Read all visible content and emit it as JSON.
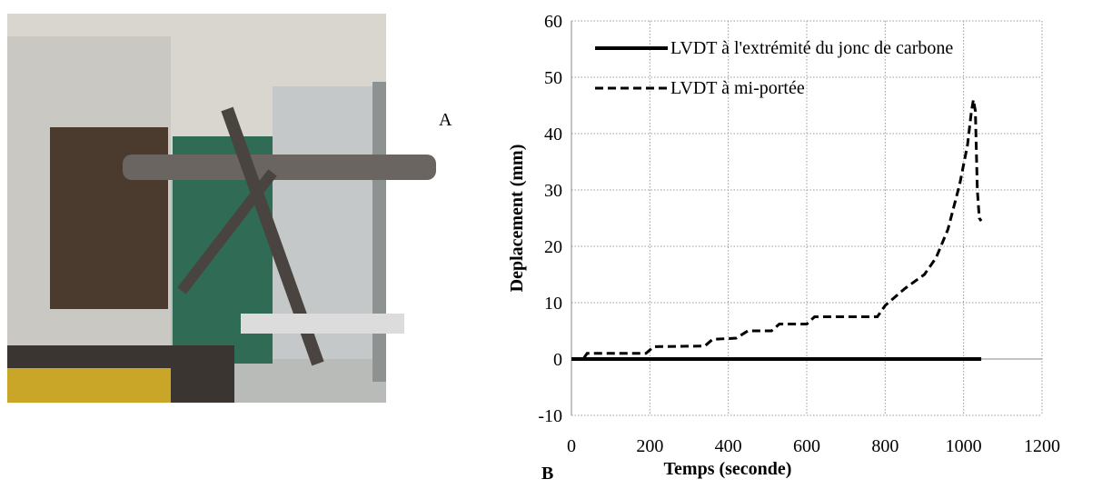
{
  "photo_label": "A",
  "chart_label": "B",
  "chart_data": {
    "type": "line",
    "xlabel": "Temps (seconde)",
    "ylabel": "Deplacement (mm)",
    "xlim": [
      0,
      1200
    ],
    "xticks": [
      0,
      200,
      400,
      600,
      800,
      1000,
      1200
    ],
    "ylim": [
      -10,
      60
    ],
    "yticks": [
      -10,
      0,
      10,
      20,
      30,
      40,
      50,
      60
    ],
    "grid": true,
    "legend": "top-left",
    "series": [
      {
        "name": "LVDT à l'extrémité du jonc de carbone",
        "color": "#000000",
        "line_style": "solid",
        "x": [
          0,
          1045
        ],
        "values": [
          0,
          0
        ]
      },
      {
        "name": "LVDT à mi-portée",
        "color": "#000000",
        "line_style": "dashed",
        "x": [
          0,
          30,
          40,
          190,
          210,
          340,
          360,
          420,
          450,
          510,
          530,
          600,
          620,
          780,
          800,
          850,
          880,
          900,
          930,
          960,
          990,
          1010,
          1020,
          1025,
          1030,
          1035,
          1040,
          1045
        ],
        "values": [
          0,
          0,
          1,
          1,
          2.2,
          2.3,
          3.5,
          3.7,
          5,
          5,
          6.2,
          6.2,
          7.5,
          7.5,
          9.5,
          12.5,
          14,
          15,
          18,
          23,
          31,
          38,
          44,
          46,
          44,
          30,
          25,
          24.5
        ]
      }
    ]
  }
}
